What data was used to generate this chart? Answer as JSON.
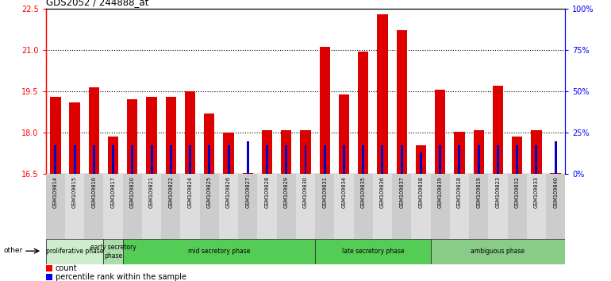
{
  "title": "GDS2052 / 244888_at",
  "samples": [
    "GSM109814",
    "GSM109815",
    "GSM109816",
    "GSM109817",
    "GSM109820",
    "GSM109821",
    "GSM109822",
    "GSM109824",
    "GSM109825",
    "GSM109826",
    "GSM109827",
    "GSM109828",
    "GSM109829",
    "GSM109830",
    "GSM109831",
    "GSM109834",
    "GSM109835",
    "GSM109836",
    "GSM109837",
    "GSM109838",
    "GSM109839",
    "GSM109818",
    "GSM109819",
    "GSM109823",
    "GSM109832",
    "GSM109833",
    "GSM109840"
  ],
  "count_values": [
    19.3,
    19.1,
    19.65,
    17.85,
    19.2,
    19.3,
    19.3,
    19.5,
    18.7,
    18.0,
    16.55,
    18.1,
    18.1,
    18.1,
    21.1,
    19.4,
    20.95,
    22.3,
    21.7,
    17.55,
    19.55,
    18.05,
    18.1,
    19.7,
    17.85,
    18.1,
    16.55
  ],
  "percentile_values": [
    17.55,
    17.55,
    17.55,
    17.55,
    17.55,
    17.55,
    17.55,
    17.55,
    17.55,
    17.55,
    17.7,
    17.55,
    17.55,
    17.55,
    17.55,
    17.55,
    17.55,
    17.55,
    17.55,
    17.3,
    17.55,
    17.55,
    17.55,
    17.55,
    17.55,
    17.55,
    17.7
  ],
  "ylim_left": [
    16.5,
    22.5
  ],
  "ylim_right": [
    0,
    100
  ],
  "yticks_left": [
    16.5,
    18.0,
    19.5,
    21.0,
    22.5
  ],
  "yticks_right": [
    0,
    25,
    50,
    75,
    100
  ],
  "ytick_labels_right": [
    "0%",
    "25%",
    "50%",
    "75%",
    "100%"
  ],
  "baseline": 16.5,
  "bar_color": "#dd0000",
  "percentile_color": "#0000cc",
  "phases": [
    {
      "label": "proliferative phase",
      "start": 0,
      "end": 3,
      "color": "#cceecc"
    },
    {
      "label": "early secretory\nphase",
      "start": 3,
      "end": 4,
      "color": "#aaddaa"
    },
    {
      "label": "mid secretory phase",
      "start": 4,
      "end": 14,
      "color": "#55cc55"
    },
    {
      "label": "late secretory phase",
      "start": 14,
      "end": 20,
      "color": "#55cc55"
    },
    {
      "label": "ambiguous phase",
      "start": 20,
      "end": 27,
      "color": "#88cc88"
    }
  ]
}
